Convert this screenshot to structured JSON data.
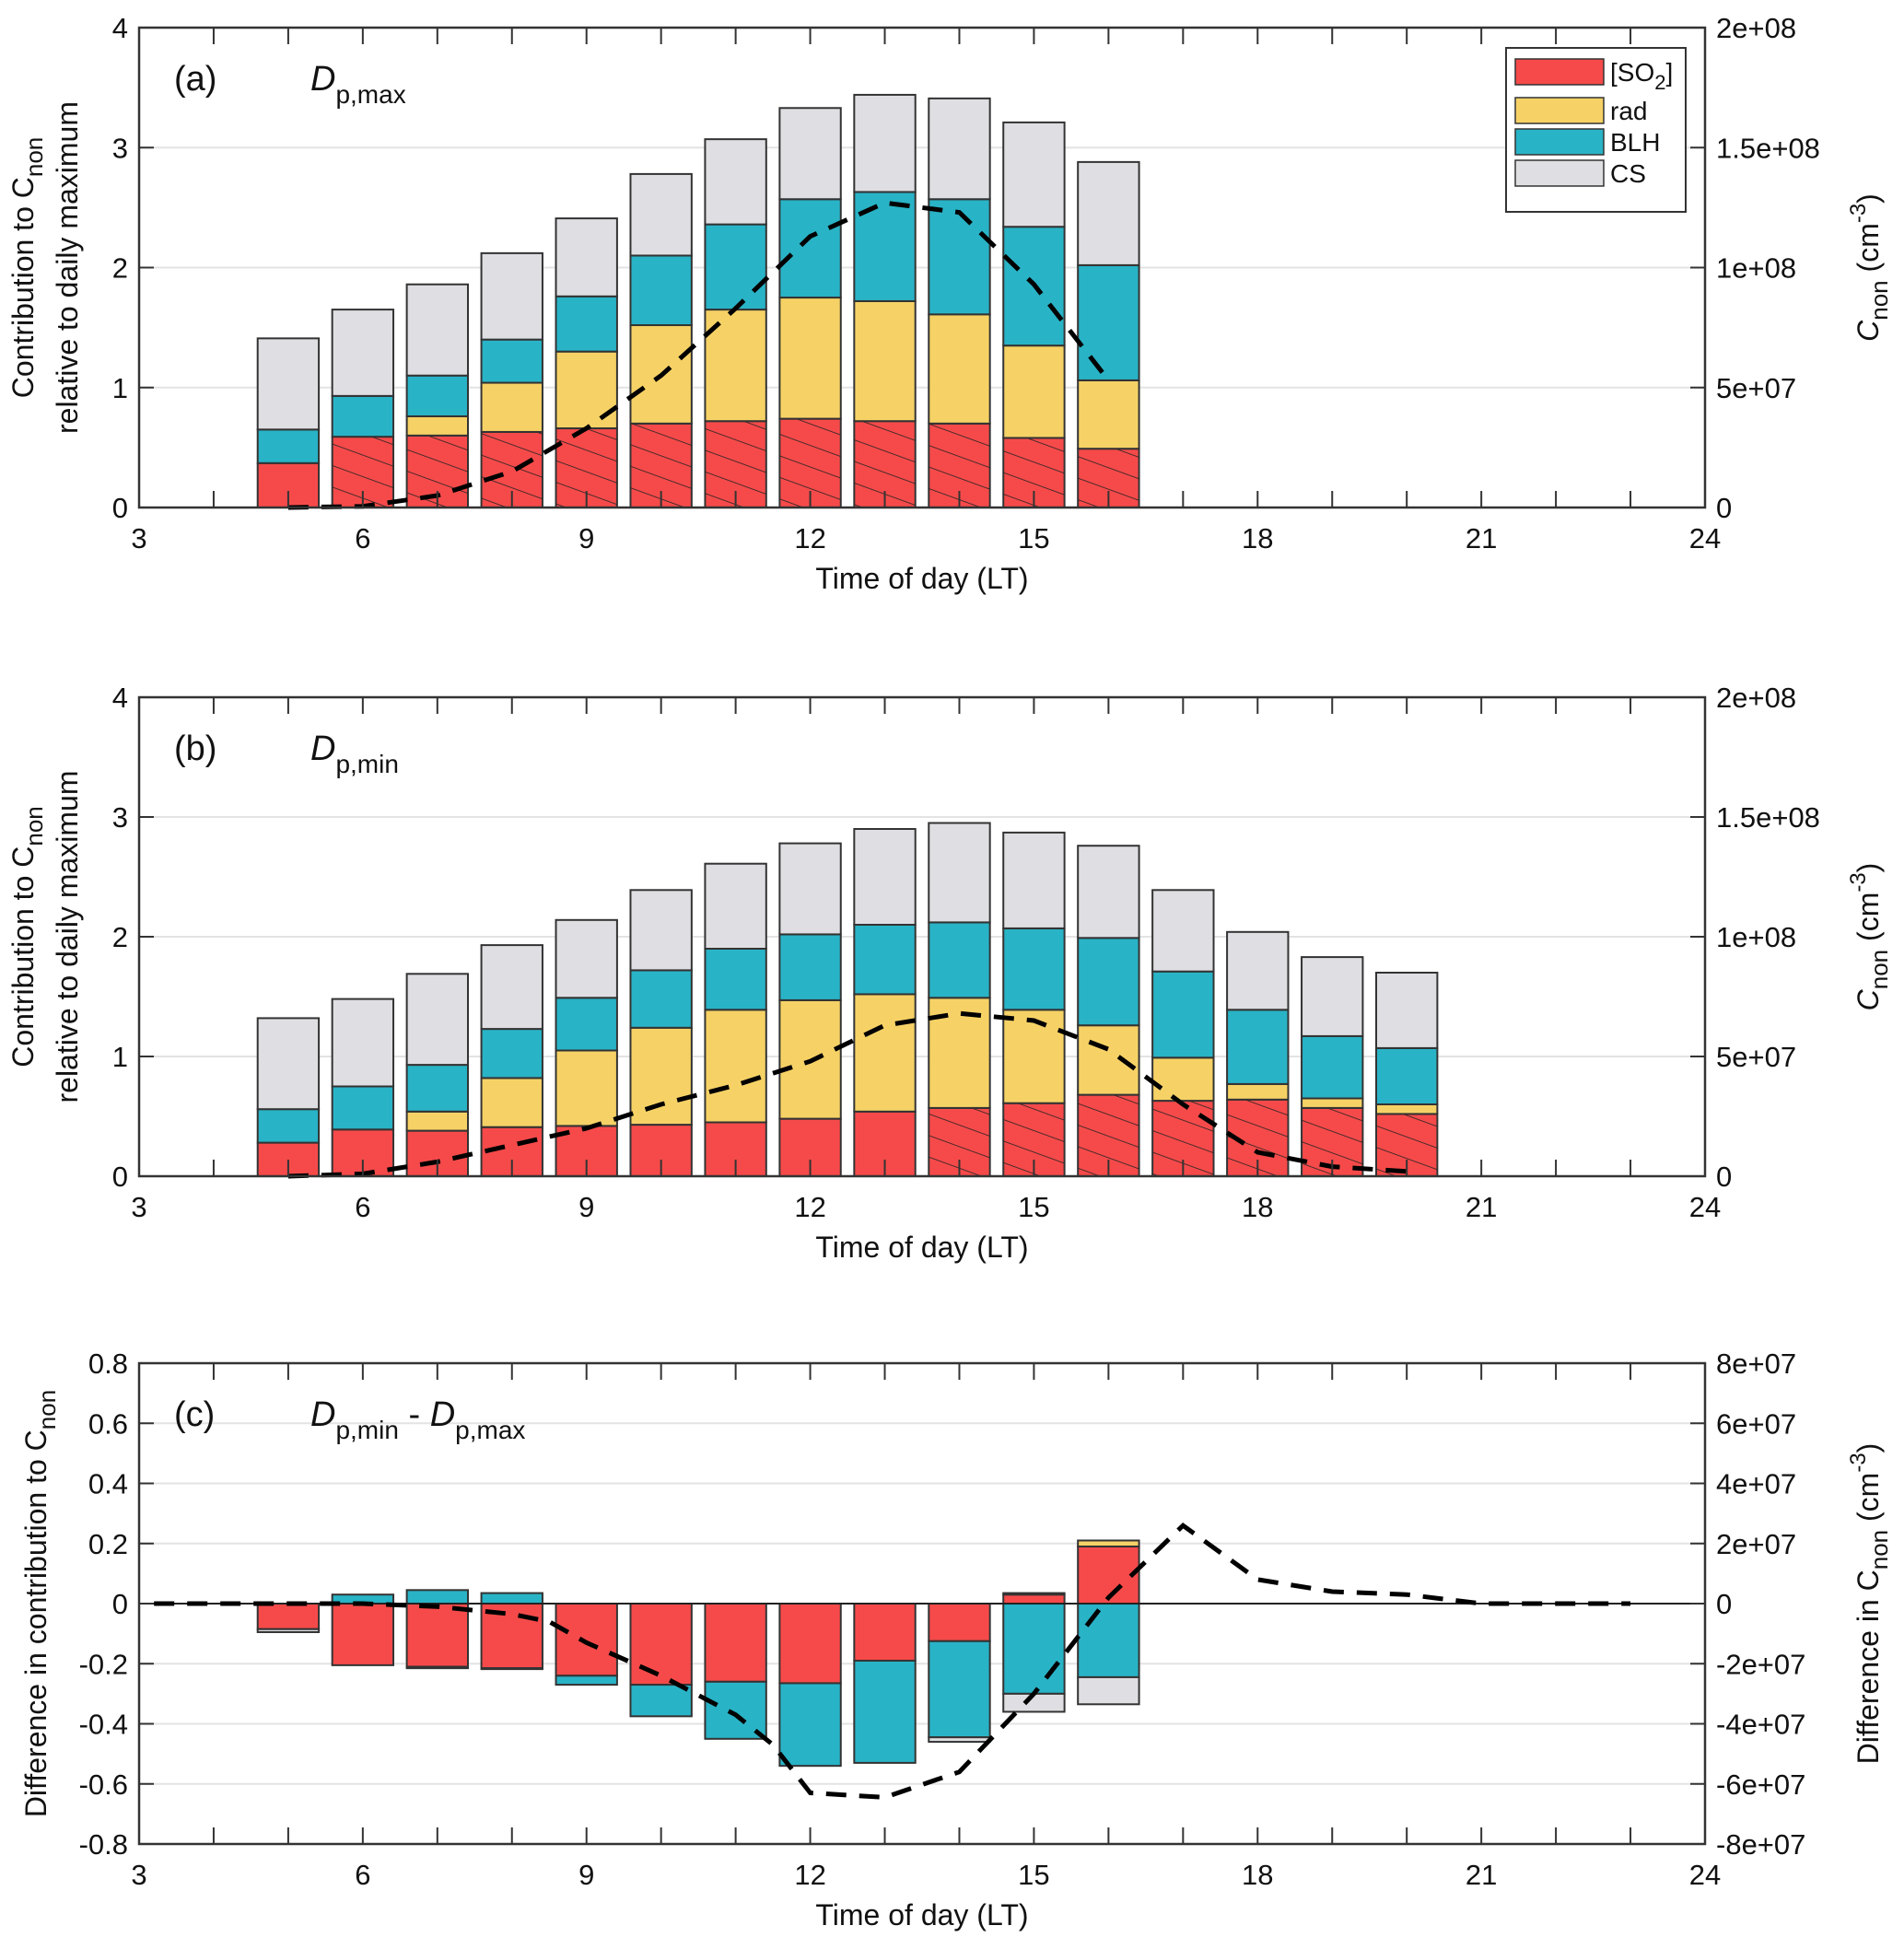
{
  "colors": {
    "SO2": "#f64a4a",
    "rad": "#f6d266",
    "BLH": "#29b3c6",
    "CS": "#dfdfe3",
    "edge": "#333333",
    "grid": "#e3e3e3",
    "line": "#000000"
  },
  "legend": {
    "placement": "top-right (panel a)",
    "items": [
      {
        "key": "SO2",
        "label": "[SO",
        "sub": "2",
        "tail": "]"
      },
      {
        "key": "rad",
        "label": "rad"
      },
      {
        "key": "BLH",
        "label": "BLH"
      },
      {
        "key": "CS",
        "label": "CS"
      }
    ]
  },
  "chart_data": [
    {
      "type": "bar",
      "stacked": true,
      "panel": "a",
      "tag": "(a)",
      "subtitle": {
        "main": "D",
        "sub": "p,max"
      },
      "xlabel": "Time of day (LT)",
      "ylabel_line1": {
        "text": "Contribution to  C",
        "sub": "non"
      },
      "ylabel_line2": "relative to daily maximum",
      "y2label": {
        "main": "C",
        "sub": "non",
        "unit": "(cm",
        "sup": "-3",
        "close": ")"
      },
      "xlim": [
        3,
        24
      ],
      "xticks": [
        3,
        6,
        9,
        12,
        15,
        18,
        21,
        24
      ],
      "ylim": [
        0,
        4
      ],
      "yticks": [
        0,
        1,
        2,
        3,
        4
      ],
      "y2lim": [
        0,
        200000000
      ],
      "y2ticks": [
        0,
        50000000,
        100000000,
        150000000,
        200000000
      ],
      "y2ticklabels": [
        "0",
        "5e+07",
        "1e+08",
        "1.5e+08",
        "2e+08"
      ],
      "grid": true,
      "hours": [
        5,
        6,
        7,
        8,
        9,
        10,
        11,
        12,
        13,
        14,
        15,
        16
      ],
      "series": [
        {
          "name": "[SO2]",
          "key": "SO2",
          "values": [
            0.37,
            0.59,
            0.6,
            0.63,
            0.66,
            0.7,
            0.72,
            0.74,
            0.72,
            0.7,
            0.58,
            0.49
          ]
        },
        {
          "name": "rad",
          "key": "rad",
          "values": [
            0.0,
            0.0,
            0.16,
            0.41,
            0.64,
            0.82,
            0.93,
            1.01,
            1.0,
            0.91,
            0.77,
            0.57
          ]
        },
        {
          "name": "BLH",
          "key": "BLH",
          "values": [
            0.28,
            0.34,
            0.34,
            0.36,
            0.46,
            0.58,
            0.71,
            0.82,
            0.91,
            0.96,
            0.99,
            0.96
          ]
        },
        {
          "name": "CS",
          "key": "CS",
          "values": [
            0.76,
            0.72,
            0.76,
            0.72,
            0.65,
            0.68,
            0.71,
            0.76,
            0.81,
            0.84,
            0.87,
            0.86
          ]
        }
      ],
      "hatched_so2_hours": [
        6,
        7,
        8,
        9,
        10,
        11,
        12,
        13,
        14,
        15,
        16
      ],
      "line": {
        "name": "C_non",
        "style": "dashed",
        "axis": "right",
        "x": [
          5,
          6,
          7,
          8,
          9,
          10,
          11,
          12,
          13,
          14,
          15,
          16
        ],
        "y": [
          0,
          500000,
          5000000,
          15000000,
          33000000,
          55000000,
          83000000,
          113000000,
          127000000,
          123000000,
          93000000,
          53000000
        ]
      }
    },
    {
      "type": "bar",
      "stacked": true,
      "panel": "b",
      "tag": "(b)",
      "subtitle": {
        "main": "D",
        "sub": "p,min"
      },
      "xlabel": "Time of day (LT)",
      "ylabel_line1": {
        "text": "Contribution to  C",
        "sub": "non"
      },
      "ylabel_line2": "relative to daily maximum",
      "y2label": {
        "main": "C",
        "sub": "non",
        "unit": "(cm",
        "sup": "-3",
        "close": ")"
      },
      "xlim": [
        3,
        24
      ],
      "xticks": [
        3,
        6,
        9,
        12,
        15,
        18,
        21,
        24
      ],
      "ylim": [
        0,
        4
      ],
      "yticks": [
        0,
        1,
        2,
        3,
        4
      ],
      "y2lim": [
        0,
        200000000
      ],
      "y2ticks": [
        0,
        50000000,
        100000000,
        150000000,
        200000000
      ],
      "y2ticklabels": [
        "0",
        "5e+07",
        "1e+08",
        "1.5e+08",
        "2e+08"
      ],
      "grid": true,
      "hours": [
        5,
        6,
        7,
        8,
        9,
        10,
        11,
        12,
        13,
        14,
        15,
        16,
        17,
        18,
        19,
        20
      ],
      "series": [
        {
          "name": "[SO2]",
          "key": "SO2",
          "values": [
            0.28,
            0.39,
            0.38,
            0.41,
            0.42,
            0.43,
            0.45,
            0.48,
            0.54,
            0.57,
            0.61,
            0.68,
            0.63,
            0.64,
            0.57,
            0.52
          ]
        },
        {
          "name": "rad",
          "key": "rad",
          "values": [
            0.0,
            0.0,
            0.16,
            0.41,
            0.63,
            0.81,
            0.94,
            0.99,
            0.98,
            0.92,
            0.78,
            0.58,
            0.36,
            0.13,
            0.08,
            0.08
          ]
        },
        {
          "name": "BLH",
          "key": "BLH",
          "values": [
            0.28,
            0.36,
            0.39,
            0.41,
            0.44,
            0.48,
            0.51,
            0.55,
            0.58,
            0.63,
            0.68,
            0.73,
            0.72,
            0.62,
            0.52,
            0.47
          ]
        },
        {
          "name": "CS",
          "key": "CS",
          "values": [
            0.76,
            0.73,
            0.76,
            0.7,
            0.65,
            0.67,
            0.71,
            0.76,
            0.8,
            0.83,
            0.8,
            0.77,
            0.68,
            0.65,
            0.66,
            0.63
          ]
        }
      ],
      "hatched_so2_hours": [
        14,
        15,
        16,
        17,
        18,
        19,
        20
      ],
      "line": {
        "name": "C_non",
        "style": "dashed",
        "axis": "right",
        "x": [
          5,
          6,
          7,
          8,
          9,
          10,
          11,
          12,
          13,
          14,
          15,
          16,
          17,
          18,
          19,
          20
        ],
        "y": [
          0,
          1000000,
          6000000,
          13000000,
          20000000,
          30000000,
          38000000,
          48000000,
          63000000,
          68000000,
          65000000,
          53000000,
          30000000,
          10000000,
          4000000,
          2000000
        ]
      }
    },
    {
      "type": "bar",
      "stacked": true,
      "diverging": true,
      "panel": "c",
      "tag": "(c)",
      "subtitle": {
        "main": "D",
        "sub": "p,min",
        "mid": " - D",
        "sub2": "p,max"
      },
      "xlabel": "Time of day (LT)",
      "ylabel_line1": {
        "text": "Difference in contribution to  C",
        "sub": "non"
      },
      "y2label": {
        "main": "Difference in  C",
        "sub": "non",
        "unit": "(cm",
        "sup": "-3",
        "close": ")"
      },
      "xlim": [
        3,
        24
      ],
      "xticks": [
        3,
        6,
        9,
        12,
        15,
        18,
        21,
        24
      ],
      "ylim": [
        -0.8,
        0.8
      ],
      "yticks": [
        -0.8,
        -0.6,
        -0.4,
        -0.2,
        0,
        0.2,
        0.4,
        0.6,
        0.8
      ],
      "yticklabels": [
        "-0.8",
        "-0.6",
        "-0.4",
        "-0.2",
        "0",
        "0.2",
        "0.4",
        "0.6",
        "0.8"
      ],
      "y2lim": [
        -80000000,
        80000000
      ],
      "y2ticks": [
        -80000000,
        -60000000,
        -40000000,
        -20000000,
        0,
        20000000,
        40000000,
        60000000,
        80000000
      ],
      "y2ticklabels": [
        "-8e+07",
        "-6e+07",
        "-4e+07",
        "-2e+07",
        "0",
        "2e+07",
        "4e+07",
        "6e+07",
        "8e+07"
      ],
      "grid": true,
      "hours": [
        5,
        6,
        7,
        8,
        9,
        10,
        11,
        12,
        13,
        14,
        15,
        16
      ],
      "series": [
        {
          "name": "[SO2]",
          "key": "SO2",
          "values": [
            -0.085,
            -0.205,
            -0.21,
            -0.215,
            -0.24,
            -0.27,
            -0.26,
            -0.265,
            -0.19,
            -0.125,
            0.03,
            0.19
          ]
        },
        {
          "name": "rad",
          "key": "rad",
          "values": [
            0,
            0,
            0,
            0,
            0,
            0,
            0,
            0,
            0,
            0,
            0.005,
            0.02
          ]
        },
        {
          "name": "BLH",
          "key": "BLH",
          "values": [
            0,
            0.03,
            0.045,
            0.035,
            -0.03,
            -0.105,
            -0.19,
            -0.275,
            -0.34,
            -0.32,
            -0.3,
            -0.245
          ]
        },
        {
          "name": "CS",
          "key": "CS",
          "values": [
            -0.01,
            0,
            -0.005,
            -0.003,
            0,
            0,
            0,
            0,
            0,
            -0.015,
            -0.06,
            -0.09
          ]
        }
      ],
      "line": {
        "name": "Difference in C_non",
        "style": "dashed",
        "axis": "right",
        "x": [
          3.2,
          5,
          6,
          7,
          8,
          8.5,
          9,
          10,
          11,
          11.5,
          12,
          13,
          14,
          15,
          16,
          17,
          18,
          19,
          20,
          21,
          23
        ],
        "y": [
          0,
          0,
          0,
          -1000000,
          -3500000,
          -6000000,
          -13000000,
          -24000000,
          -37000000,
          -47000000,
          -63000000,
          -64500000,
          -56000000,
          -30000000,
          2000000,
          26000000,
          8000000,
          4000000,
          3000000,
          0,
          0
        ]
      }
    }
  ]
}
